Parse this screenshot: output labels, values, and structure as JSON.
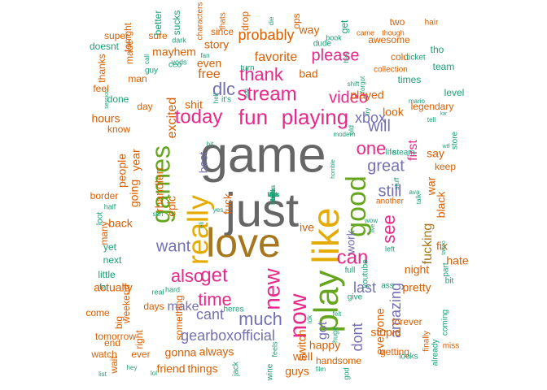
{
  "colors": {
    "teal": "#1b9e77",
    "orange": "#d95f02",
    "purple": "#7570b3",
    "pink": "#e7298a",
    "green": "#66a61e",
    "gold": "#e6ab02",
    "brown": "#a6761d",
    "gray": "#666666"
  },
  "words": [
    {
      "t": "game",
      "c": "gray",
      "r": 0
    },
    {
      "t": "just",
      "c": "gray",
      "r": 0
    },
    {
      "t": "love",
      "c": "brown",
      "r": 0
    },
    {
      "t": "like",
      "c": "gold",
      "r": -90
    },
    {
      "t": "play",
      "c": "green",
      "r": -90
    },
    {
      "t": "really",
      "c": "gold",
      "r": -90
    },
    {
      "t": "good",
      "c": "green",
      "r": -90
    },
    {
      "t": "games",
      "c": "green",
      "r": -90
    },
    {
      "t": "now",
      "c": "pink",
      "r": -90
    },
    {
      "t": "new",
      "c": "pink",
      "r": -90
    },
    {
      "t": "get",
      "c": "pink",
      "r": 0
    },
    {
      "t": "can",
      "c": "pink",
      "r": 0
    },
    {
      "t": "fun",
      "c": "pink",
      "r": 0
    },
    {
      "t": "playing",
      "c": "pink",
      "r": 0
    },
    {
      "t": "stream",
      "c": "pink",
      "r": 0
    },
    {
      "t": "today",
      "c": "pink",
      "r": 0
    },
    {
      "t": "one",
      "c": "pink",
      "r": 0
    },
    {
      "t": "see",
      "c": "pink",
      "r": -90
    },
    {
      "t": "much",
      "c": "purple",
      "r": 0
    },
    {
      "t": "also",
      "c": "pink",
      "r": 0
    },
    {
      "t": "thank",
      "c": "pink",
      "r": 0
    },
    {
      "t": "dlc",
      "c": "purple",
      "r": 0
    },
    {
      "t": "time",
      "c": "pink",
      "r": 0
    },
    {
      "t": "video",
      "c": "pink",
      "r": 0
    },
    {
      "t": "gearboxofficial",
      "c": "purple",
      "r": 0
    },
    {
      "t": "will",
      "c": "purple",
      "r": 0
    },
    {
      "t": "still",
      "c": "purple",
      "r": 0
    },
    {
      "t": "great",
      "c": "purple",
      "r": 0
    },
    {
      "t": "want",
      "c": "purple",
      "r": 0
    },
    {
      "t": "please",
      "c": "pink",
      "r": 0
    },
    {
      "t": "xbox",
      "c": "purple",
      "r": 0
    },
    {
      "t": "last",
      "c": "purple",
      "r": 0
    },
    {
      "t": "amazing",
      "c": "purple",
      "r": -90
    },
    {
      "t": "first",
      "c": "pink",
      "r": -90
    },
    {
      "t": "fucking",
      "c": "brown",
      "r": -90
    },
    {
      "t": "dont",
      "c": "purple",
      "r": -90
    },
    {
      "t": "got",
      "c": "purple",
      "r": -90
    },
    {
      "t": "cant",
      "c": "purple",
      "r": 0
    },
    {
      "t": "make",
      "c": "purple",
      "r": 0
    },
    {
      "t": "probably",
      "c": "orange",
      "r": 0
    },
    {
      "t": "favorite",
      "c": "orange",
      "r": 0
    },
    {
      "t": "free",
      "c": "orange",
      "r": 0
    },
    {
      "t": "even",
      "c": "orange",
      "r": 0
    },
    {
      "t": "shit",
      "c": "orange",
      "r": 0
    },
    {
      "t": "story",
      "c": "orange",
      "r": 0
    },
    {
      "t": "mayhem",
      "c": "orange",
      "r": 0
    },
    {
      "t": "excited",
      "c": "orange",
      "r": -90
    },
    {
      "t": "bad",
      "c": "orange",
      "r": 0
    },
    {
      "t": "way",
      "c": "orange",
      "r": 0
    },
    {
      "t": "played",
      "c": "orange",
      "r": 0
    },
    {
      "t": "look",
      "c": "orange",
      "r": 0
    },
    {
      "t": "best",
      "c": "purple",
      "r": -90
    },
    {
      "t": "rhandlerr",
      "c": "orange",
      "r": -90
    },
    {
      "t": "hours",
      "c": "orange",
      "r": 0
    },
    {
      "t": "people",
      "c": "orange",
      "r": -90
    },
    {
      "t": "year",
      "c": "orange",
      "r": -90
    },
    {
      "t": "going",
      "c": "orange",
      "r": -90
    },
    {
      "t": "back",
      "c": "orange",
      "r": 0
    },
    {
      "t": "epic",
      "c": "orange",
      "r": -90
    },
    {
      "t": "fuck",
      "c": "orange",
      "r": -90
    },
    {
      "t": "work",
      "c": "purple",
      "r": -90
    },
    {
      "t": "ive",
      "c": "orange",
      "r": 0
    },
    {
      "t": "fix",
      "c": "orange",
      "r": 0
    },
    {
      "t": "black",
      "c": "orange",
      "r": -90
    },
    {
      "t": "war",
      "c": "orange",
      "r": -90
    },
    {
      "t": "say",
      "c": "orange",
      "r": 0
    },
    {
      "t": "night",
      "c": "orange",
      "r": 0
    },
    {
      "t": "hate",
      "c": "orange",
      "r": 0
    },
    {
      "t": "everyone",
      "c": "orange",
      "r": -90
    },
    {
      "t": "switch",
      "c": "orange",
      "r": -90
    },
    {
      "t": "well",
      "c": "orange",
      "r": 0
    },
    {
      "t": "happy",
      "c": "orange",
      "r": 0
    },
    {
      "t": "gonna",
      "c": "orange",
      "r": 0
    },
    {
      "t": "always",
      "c": "orange",
      "r": 0
    },
    {
      "t": "actually",
      "c": "orange",
      "r": 0
    },
    {
      "t": "pretty",
      "c": "orange",
      "r": 0
    },
    {
      "t": "stupid",
      "c": "orange",
      "r": 0
    },
    {
      "t": "guys",
      "c": "orange",
      "r": 0
    },
    {
      "t": "friend",
      "c": "orange",
      "r": 0
    },
    {
      "t": "things",
      "c": "orange",
      "r": 0
    },
    {
      "t": "handsome",
      "c": "orange",
      "r": 0
    },
    {
      "t": "getting",
      "c": "orange",
      "r": 0
    },
    {
      "t": "forever",
      "c": "orange",
      "r": 0
    },
    {
      "t": "days",
      "c": "orange",
      "r": 0
    },
    {
      "t": "something",
      "c": "orange",
      "r": -90
    },
    {
      "t": "weekend",
      "c": "orange",
      "r": -90
    },
    {
      "t": "big",
      "c": "orange",
      "r": -90
    },
    {
      "t": "right",
      "c": "orange",
      "r": -90
    },
    {
      "t": "ever",
      "c": "orange",
      "r": 0
    },
    {
      "t": "come",
      "c": "orange",
      "r": 0
    },
    {
      "t": "end",
      "c": "orange",
      "r": 0
    },
    {
      "t": "wait",
      "c": "orange",
      "r": -90
    },
    {
      "t": "watch",
      "c": "orange",
      "r": 0
    },
    {
      "t": "tomorrow",
      "c": "orange",
      "r": 0
    },
    {
      "t": "little",
      "c": "teal",
      "r": 0
    },
    {
      "t": "next",
      "c": "teal",
      "r": 0
    },
    {
      "t": "yet",
      "c": "teal",
      "r": 0
    },
    {
      "t": "many",
      "c": "orange",
      "r": -90
    },
    {
      "t": "border",
      "c": "orange",
      "r": 0
    },
    {
      "t": "know",
      "c": "orange",
      "r": 0
    },
    {
      "t": "done",
      "c": "teal",
      "r": 0
    },
    {
      "t": "day",
      "c": "orange",
      "r": 0
    },
    {
      "t": "man",
      "c": "orange",
      "r": 0
    },
    {
      "t": "feel",
      "c": "orange",
      "r": 0
    },
    {
      "t": "thanks",
      "c": "orange",
      "r": -90
    },
    {
      "t": "doesnt",
      "c": "teal",
      "r": 0
    },
    {
      "t": "super",
      "c": "orange",
      "r": 0
    },
    {
      "t": "made",
      "c": "orange",
      "r": -90
    },
    {
      "t": "tonight",
      "c": "orange",
      "r": -90
    },
    {
      "t": "better",
      "c": "teal",
      "r": -90
    },
    {
      "t": "sucks",
      "c": "teal",
      "r": -90
    },
    {
      "t": "characters",
      "c": "orange",
      "r": -90
    },
    {
      "t": "thats",
      "c": "orange",
      "r": -90
    },
    {
      "t": "drop",
      "c": "orange",
      "r": -90
    },
    {
      "t": "die",
      "c": "teal",
      "r": -90
    },
    {
      "t": "ops",
      "c": "orange",
      "r": -90
    },
    {
      "t": "get",
      "c": "teal",
      "r": -90
    },
    {
      "t": "two",
      "c": "orange",
      "r": 0
    },
    {
      "t": "hair",
      "c": "orange",
      "r": 0
    },
    {
      "t": "sure",
      "c": "orange",
      "r": 0
    },
    {
      "t": "dark",
      "c": "teal",
      "r": 0
    },
    {
      "t": "since",
      "c": "orange",
      "r": 0
    },
    {
      "t": "book",
      "c": "teal",
      "r": 0
    },
    {
      "t": "came",
      "c": "orange",
      "r": 0
    },
    {
      "t": "though",
      "c": "orange",
      "r": 0
    },
    {
      "t": "awesome",
      "c": "orange",
      "r": 0
    },
    {
      "t": "tho",
      "c": "teal",
      "r": 0
    },
    {
      "t": "cold",
      "c": "orange",
      "r": 0
    },
    {
      "t": "ticket",
      "c": "teal",
      "r": 0
    },
    {
      "t": "collection",
      "c": "orange",
      "r": 0
    },
    {
      "t": "times",
      "c": "teal",
      "r": 0
    },
    {
      "t": "team",
      "c": "teal",
      "r": 0
    },
    {
      "t": "level",
      "c": "teal",
      "r": 0
    },
    {
      "t": "legendary",
      "c": "orange",
      "r": 0
    },
    {
      "t": "store",
      "c": "teal",
      "r": -90
    },
    {
      "t": "keep",
      "c": "orange",
      "r": 0
    },
    {
      "t": "life",
      "c": "teal",
      "r": 0
    },
    {
      "t": "steam",
      "c": "teal",
      "r": 0
    },
    {
      "t": "another",
      "c": "orange",
      "r": 0
    },
    {
      "t": "part",
      "c": "teal",
      "r": -90
    },
    {
      "t": "coming",
      "c": "teal",
      "r": -90
    },
    {
      "t": "already",
      "c": "teal",
      "r": -90
    },
    {
      "t": "finally",
      "c": "orange",
      "r": -90
    },
    {
      "t": "looks",
      "c": "teal",
      "r": 0
    },
    {
      "t": "miss",
      "c": "orange",
      "r": 0
    },
    {
      "t": "bit",
      "c": "teal",
      "r": 0
    },
    {
      "t": "ass",
      "c": "teal",
      "r": 0
    },
    {
      "t": "give",
      "c": "teal",
      "r": 0
    },
    {
      "t": "full",
      "c": "teal",
      "r": 0
    },
    {
      "t": "youtube",
      "c": "teal",
      "r": -90
    },
    {
      "t": "huge",
      "c": "teal",
      "r": -90
    },
    {
      "t": "god",
      "c": "teal",
      "r": -90
    },
    {
      "t": "feels",
      "c": "teal",
      "r": -90
    },
    {
      "t": "wine",
      "c": "teal",
      "r": -90
    },
    {
      "t": "jack",
      "c": "teal",
      "r": -90
    },
    {
      "t": "film",
      "c": "teal",
      "r": 0
    },
    {
      "t": "lol",
      "c": "teal",
      "r": 0
    },
    {
      "t": "hey",
      "c": "teal",
      "r": 0
    },
    {
      "t": "list",
      "c": "teal",
      "r": 0
    },
    {
      "t": "hard",
      "c": "teal",
      "r": 0
    },
    {
      "t": "real",
      "c": "teal",
      "r": 0
    },
    {
      "t": "heres",
      "c": "teal",
      "r": 0
    },
    {
      "t": "far",
      "c": "teal",
      "r": 0
    },
    {
      "t": "half",
      "c": "teal",
      "r": 0
    },
    {
      "t": "loot",
      "c": "teal",
      "r": -90
    },
    {
      "t": "guy",
      "c": "teal",
      "r": 0
    },
    {
      "t": "vods",
      "c": "teal",
      "r": 0
    },
    {
      "t": "ceo",
      "c": "teal",
      "r": 0
    },
    {
      "t": "turn",
      "c": "teal",
      "r": 0
    },
    {
      "t": "fan",
      "c": "teal",
      "r": 0
    },
    {
      "t": "it's",
      "c": "teal",
      "r": 0
    },
    {
      "t": "hell",
      "c": "teal",
      "r": -90
    },
    {
      "t": "add",
      "c": "teal",
      "r": -90
    },
    {
      "t": "shift",
      "c": "teal",
      "r": 0
    },
    {
      "t": "forgot",
      "c": "teal",
      "r": -90
    },
    {
      "t": "hes",
      "c": "teal",
      "r": -90
    },
    {
      "t": "dude",
      "c": "teal",
      "r": 0
    },
    {
      "t": "try",
      "c": "teal",
      "r": -90
    },
    {
      "t": "old",
      "c": "teal",
      "r": -90
    },
    {
      "t": "modern",
      "c": "teal",
      "r": 0
    },
    {
      "t": "tell",
      "c": "teal",
      "r": 0
    },
    {
      "t": "kar",
      "c": "teal",
      "r": 0
    },
    {
      "t": "wtf",
      "c": "teal",
      "r": 0
    },
    {
      "t": "mario",
      "c": "teal",
      "r": 0
    },
    {
      "t": "ava",
      "c": "teal",
      "r": 0
    },
    {
      "t": "talk",
      "c": "teal",
      "r": -90
    },
    {
      "t": "stuff",
      "c": "teal",
      "r": -90
    },
    {
      "t": "left",
      "c": "teal",
      "r": 0
    },
    {
      "t": "wow",
      "c": "teal",
      "r": 0
    },
    {
      "t": "live",
      "c": "teal",
      "r": -90
    },
    {
      "t": "tattoo",
      "c": "teal",
      "r": -90
    },
    {
      "t": "session",
      "c": "teal",
      "r": -90
    },
    {
      "t": "sun",
      "c": "teal",
      "r": 0
    },
    {
      "t": "idk",
      "c": "teal",
      "r": -90
    },
    {
      "t": "felt",
      "c": "teal",
      "r": 0
    },
    {
      "t": "call",
      "c": "teal",
      "r": -90
    },
    {
      "t": "hit",
      "c": "teal",
      "r": 0
    },
    {
      "t": "yes",
      "c": "teal",
      "r": 0
    },
    {
      "t": "eli",
      "c": "teal",
      "r": -90
    },
    {
      "t": "horrible",
      "c": "teal",
      "r": -90
    },
    {
      "t": "fans",
      "c": "teal",
      "r": 0
    },
    {
      "t": "dlcs",
      "c": "teal",
      "r": 0
    },
    {
      "t": "inmma",
      "c": "teal",
      "r": -90
    },
    {
      "t": "unk",
      "c": "teal",
      "r": 0
    },
    {
      "t": "i'm",
      "c": "teal",
      "r": 0
    },
    {
      "t": "think",
      "c": "teal",
      "r": -90
    },
    {
      "t": "true",
      "c": "teal",
      "r": -90
    },
    {
      "t": "rt",
      "c": "teal",
      "r": 0
    },
    {
      "t": "lol",
      "c": "teal",
      "r": -90
    },
    {
      "t": "love",
      "c": "teal",
      "r": -90
    }
  ]
}
